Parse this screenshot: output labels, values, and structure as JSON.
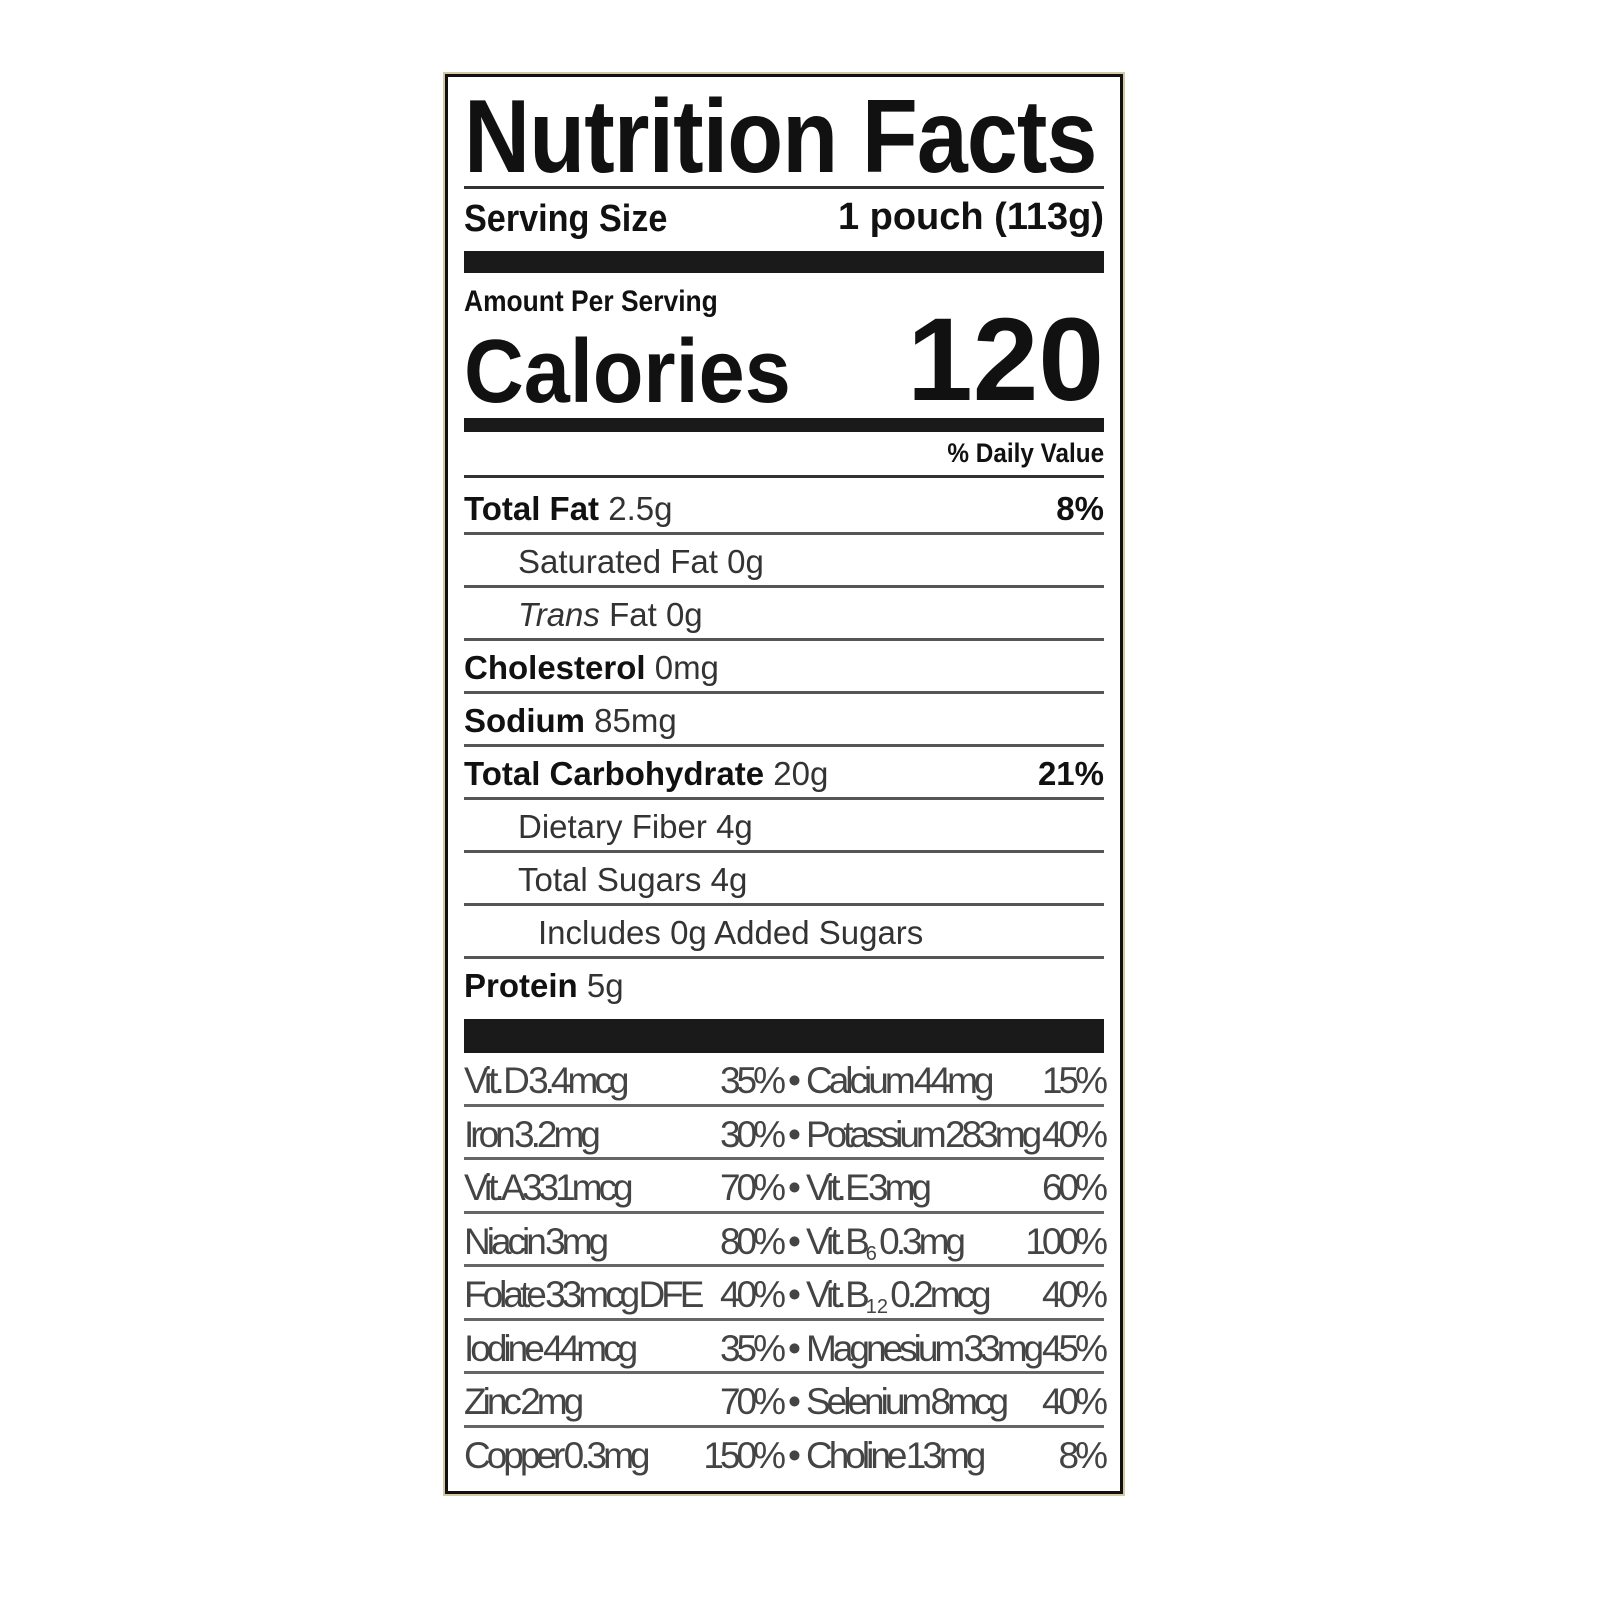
{
  "title": "Nutrition Facts",
  "serving": {
    "label": "Serving Size",
    "value": "1 pouch (113g)"
  },
  "amount_per_serving": "Amount Per Serving",
  "calories": {
    "label": "Calories",
    "value": "120"
  },
  "daily_value_header": "% Daily Value",
  "nutrients": [
    {
      "name": "Total Fat",
      "amount": "2.5g",
      "dv": "8%",
      "level": 0
    },
    {
      "name": "Saturated Fat",
      "amount": "0g",
      "dv": "",
      "level": 1
    },
    {
      "name_italic": "Trans",
      "name": " Fat",
      "amount": "0g",
      "dv": "",
      "level": 1
    },
    {
      "name": "Cholesterol",
      "amount": "0mg",
      "dv": "",
      "level": 0
    },
    {
      "name": "Sodium",
      "amount": "85mg",
      "dv": "",
      "level": 0
    },
    {
      "name": "Total Carbohydrate",
      "amount": "20g",
      "dv": "21%",
      "level": 0
    },
    {
      "name": "Dietary Fiber",
      "amount": "4g",
      "dv": "",
      "level": 1
    },
    {
      "name": "Total Sugars",
      "amount": "4g",
      "dv": "",
      "level": 1
    },
    {
      "name": "Includes 0g Added Sugars",
      "amount": "",
      "dv": "",
      "level": 2
    },
    {
      "name": "Protein",
      "amount": "5g",
      "dv": "",
      "level": 0
    }
  ],
  "micronutrients": [
    {
      "left": {
        "name": "Vit. D",
        "amount": "3.4mcg",
        "dv": "35%"
      },
      "right": {
        "name": "Calcium",
        "amount": "44mg",
        "dv": "15%"
      }
    },
    {
      "left": {
        "name": "Iron",
        "amount": "3.2mg",
        "dv": "30%"
      },
      "right": {
        "name": "Potassium",
        "amount": "283mg",
        "dv": "40%"
      }
    },
    {
      "left": {
        "name": "Vit. A",
        "amount": "331mcg",
        "dv": "70%"
      },
      "right": {
        "name": "Vit. E",
        "amount": "3mg",
        "dv": "60%"
      }
    },
    {
      "left": {
        "name": "Niacin",
        "amount": "3mg",
        "dv": "80%"
      },
      "right": {
        "name": "Vit. B",
        "sub": "6",
        "amount": "0.3mg",
        "dv": "100%"
      }
    },
    {
      "left": {
        "name": "Folate",
        "amount": "33mcg DFE",
        "dv": "40%"
      },
      "right": {
        "name": "Vit. B",
        "sub": "12",
        "amount": "0.2mcg",
        "dv": "40%"
      }
    },
    {
      "left": {
        "name": "Iodine",
        "amount": "44mcg",
        "dv": "35%"
      },
      "right": {
        "name": "Magnesium",
        "amount": "33mg",
        "dv": "45%"
      }
    },
    {
      "left": {
        "name": "Zinc",
        "amount": "2mg",
        "dv": "70%"
      },
      "right": {
        "name": "Selenium",
        "amount": "8mcg",
        "dv": "40%"
      }
    },
    {
      "left": {
        "name": "Copper",
        "amount": "0.3mg",
        "dv": "150%"
      },
      "right": {
        "name": "Choline",
        "amount": "13mg",
        "dv": "8%"
      }
    }
  ],
  "separator": "•"
}
